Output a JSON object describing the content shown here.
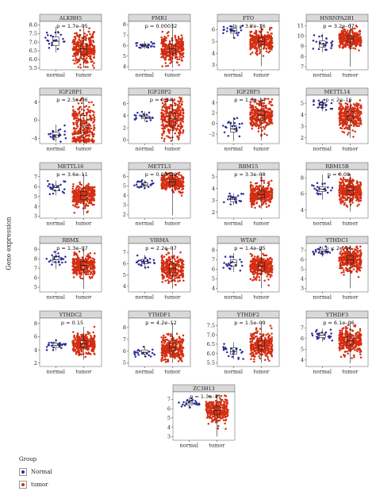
{
  "figure": {
    "ylabel": "Gene expression",
    "legend": {
      "title": "Group",
      "items": [
        {
          "label": "Normal",
          "color": "#2b2b9e"
        },
        {
          "label": "tumor",
          "color": "#d42e12"
        }
      ]
    }
  },
  "chart_data": [
    {
      "type": "scatter",
      "title": "ALKBH5",
      "p_label": "p = 1.7e–05",
      "categories": [
        "normal",
        "tumor"
      ],
      "yticks": [
        "8.0",
        "7.5",
        "7.0",
        "6.5",
        "6.0",
        "5.5"
      ],
      "ylim": [
        5.4,
        8.2
      ],
      "normal": {
        "median": 7.05,
        "q1": 6.8,
        "q3": 7.3,
        "min": 6.4,
        "max": 7.9,
        "n": 22
      },
      "tumor": {
        "median": 6.6,
        "q1": 6.3,
        "q3": 6.9,
        "min": 5.5,
        "max": 8.0,
        "n": 300
      }
    },
    {
      "type": "scatter",
      "title": "FMR1",
      "p_label": "p = 0.00032",
      "categories": [
        "normal",
        "tumor"
      ],
      "yticks": [
        "8",
        "7",
        "6",
        "5",
        "4"
      ],
      "ylim": [
        3.7,
        8.3
      ],
      "normal": {
        "median": 6.0,
        "q1": 5.9,
        "q3": 6.15,
        "min": 5.7,
        "max": 6.4,
        "n": 22
      },
      "tumor": {
        "median": 5.7,
        "q1": 5.3,
        "q3": 6.1,
        "min": 3.9,
        "max": 8.1,
        "n": 300
      }
    },
    {
      "type": "scatter",
      "title": "FTO",
      "p_label": "p = 3.2e–16",
      "categories": [
        "normal",
        "tumor"
      ],
      "yticks": [
        "6",
        "5",
        "4",
        "3"
      ],
      "ylim": [
        2.6,
        6.7
      ],
      "normal": {
        "median": 5.9,
        "q1": 5.7,
        "q3": 6.1,
        "min": 5.3,
        "max": 6.5,
        "n": 22
      },
      "tumor": {
        "median": 5.0,
        "q1": 4.7,
        "q3": 5.3,
        "min": 2.9,
        "max": 6.5,
        "n": 300
      }
    },
    {
      "type": "scatter",
      "title": "HNRNPA2B1",
      "p_label": "p = 3.2e–07",
      "categories": [
        "normal",
        "tumor"
      ],
      "yticks": [
        "11",
        "10",
        "9",
        "8",
        "7"
      ],
      "ylim": [
        6.7,
        11.4
      ],
      "normal": {
        "median": 9.2,
        "q1": 8.9,
        "q3": 9.5,
        "min": 8.4,
        "max": 10.2,
        "n": 22
      },
      "tumor": {
        "median": 9.7,
        "q1": 9.4,
        "q3": 10.0,
        "min": 7.0,
        "max": 11.2,
        "n": 300
      }
    },
    {
      "type": "scatter",
      "title": "IGF2BP1",
      "p_label": "p = 2.5e–06",
      "categories": [
        "normal",
        "tumor"
      ],
      "yticks": [
        "4",
        "0",
        "–4"
      ],
      "ylim": [
        -5.2,
        5.5
      ],
      "normal": {
        "median": -3.3,
        "q1": -3.8,
        "q3": -2.7,
        "min": -4.8,
        "max": -1.0,
        "n": 22
      },
      "tumor": {
        "median": -1.3,
        "q1": -2.8,
        "q3": 1.0,
        "min": -4.9,
        "max": 5.0,
        "n": 300
      }
    },
    {
      "type": "scatter",
      "title": "IGF2BP2",
      "p_label": "p = 0.34",
      "categories": [
        "normal",
        "tumor"
      ],
      "yticks": [
        "6",
        "4",
        "2",
        "0"
      ],
      "ylim": [
        -0.6,
        7.4
      ],
      "normal": {
        "median": 3.8,
        "q1": 3.5,
        "q3": 4.1,
        "min": 3.0,
        "max": 4.7,
        "n": 22
      },
      "tumor": {
        "median": 3.5,
        "q1": 2.3,
        "q3": 4.5,
        "min": -0.2,
        "max": 7.0,
        "n": 300
      }
    },
    {
      "type": "scatter",
      "title": "IGF2BP3",
      "p_label": "p = 1.6e–14",
      "categories": [
        "normal",
        "tumor"
      ],
      "yticks": [
        "4",
        "2",
        "0",
        "–2"
      ],
      "ylim": [
        -3.8,
        5.4
      ],
      "normal": {
        "median": -1.0,
        "q1": -1.6,
        "q3": -0.4,
        "min": -3.3,
        "max": 1.2,
        "n": 22
      },
      "tumor": {
        "median": 1.6,
        "q1": 0.6,
        "q3": 2.5,
        "min": -3.2,
        "max": 4.8,
        "n": 300
      }
    },
    {
      "type": "scatter",
      "title": "METTL14",
      "p_label": "p < 2e–16",
      "categories": [
        "normal",
        "tumor"
      ],
      "yticks": [
        "5",
        "4",
        "3",
        "2"
      ],
      "ylim": [
        1.5,
        5.7
      ],
      "normal": {
        "median": 4.85,
        "q1": 4.65,
        "q3": 5.05,
        "min": 4.3,
        "max": 5.3,
        "n": 22
      },
      "tumor": {
        "median": 3.9,
        "q1": 3.5,
        "q3": 4.3,
        "min": 2.0,
        "max": 5.3,
        "n": 300
      }
    },
    {
      "type": "scatter",
      "title": "METTL16",
      "p_label": "p = 3.6e–11",
      "categories": [
        "normal",
        "tumor"
      ],
      "yticks": [
        "7",
        "6",
        "5",
        "4",
        "3"
      ],
      "ylim": [
        2.8,
        7.7
      ],
      "normal": {
        "median": 5.9,
        "q1": 5.6,
        "q3": 6.1,
        "min": 5.1,
        "max": 6.6,
        "n": 22
      },
      "tumor": {
        "median": 5.1,
        "q1": 4.7,
        "q3": 5.5,
        "min": 3.1,
        "max": 7.3,
        "n": 300
      }
    },
    {
      "type": "scatter",
      "title": "METTL3",
      "p_label": "p = 0.00039",
      "categories": [
        "normal",
        "tumor"
      ],
      "yticks": [
        "6",
        "5",
        "4",
        "3",
        "2"
      ],
      "ylim": [
        1.6,
        6.7
      ],
      "normal": {
        "median": 5.1,
        "q1": 4.95,
        "q3": 5.3,
        "min": 4.7,
        "max": 5.6,
        "n": 22
      },
      "tumor": {
        "median": 5.4,
        "q1": 5.1,
        "q3": 5.7,
        "min": 1.9,
        "max": 6.4,
        "n": 300
      }
    },
    {
      "type": "scatter",
      "title": "RBM15",
      "p_label": "p = 3.3e–08",
      "categories": [
        "normal",
        "tumor"
      ],
      "yticks": [
        "5",
        "4",
        "3",
        "2"
      ],
      "ylim": [
        1.5,
        5.6
      ],
      "normal": {
        "median": 3.1,
        "q1": 2.9,
        "q3": 3.3,
        "min": 2.6,
        "max": 3.6,
        "n": 22
      },
      "tumor": {
        "median": 3.5,
        "q1": 3.2,
        "q3": 3.8,
        "min": 2.3,
        "max": 5.3,
        "n": 300
      }
    },
    {
      "type": "scatter",
      "title": "RBM15B",
      "p_label": "p = 0.08",
      "categories": [
        "normal",
        "tumor"
      ],
      "yticks": [
        "8",
        "6",
        "4"
      ],
      "ylim": [
        3.0,
        9.0
      ],
      "normal": {
        "median": 6.6,
        "q1": 6.3,
        "q3": 6.9,
        "min": 5.3,
        "max": 8.4,
        "n": 22
      },
      "tumor": {
        "median": 6.4,
        "q1": 5.9,
        "q3": 6.9,
        "min": 3.8,
        "max": 8.5,
        "n": 300
      }
    },
    {
      "type": "scatter",
      "title": "RBMX",
      "p_label": "p = 1.3e–07",
      "categories": [
        "normal",
        "tumor"
      ],
      "yticks": [
        "9",
        "8",
        "7",
        "6",
        "5"
      ],
      "ylim": [
        4.5,
        9.6
      ],
      "normal": {
        "median": 7.9,
        "q1": 7.6,
        "q3": 8.2,
        "min": 6.9,
        "max": 8.9,
        "n": 22
      },
      "tumor": {
        "median": 7.3,
        "q1": 6.9,
        "q3": 7.7,
        "min": 4.8,
        "max": 9.2,
        "n": 300
      }
    },
    {
      "type": "scatter",
      "title": "VIRMA",
      "p_label": "p = 2.2e–07",
      "categories": [
        "normal",
        "tumor"
      ],
      "yticks": [
        "7",
        "6",
        "5",
        "4"
      ],
      "ylim": [
        3.5,
        7.8
      ],
      "normal": {
        "median": 6.2,
        "q1": 6.0,
        "q3": 6.4,
        "min": 5.6,
        "max": 6.8,
        "n": 22
      },
      "tumor": {
        "median": 5.6,
        "q1": 5.2,
        "q3": 6.0,
        "min": 3.8,
        "max": 7.5,
        "n": 300
      }
    },
    {
      "type": "scatter",
      "title": "WTAP",
      "p_label": "p = 1.4e–05",
      "categories": [
        "normal",
        "tumor"
      ],
      "yticks": [
        "8",
        "7",
        "6",
        "5",
        "4"
      ],
      "ylim": [
        3.6,
        8.7
      ],
      "normal": {
        "median": 6.7,
        "q1": 6.3,
        "q3": 7.0,
        "min": 5.7,
        "max": 7.7,
        "n": 22
      },
      "tumor": {
        "median": 6.3,
        "q1": 5.9,
        "q3": 6.7,
        "min": 4.0,
        "max": 8.4,
        "n": 300
      }
    },
    {
      "type": "scatter",
      "title": "YTHDC1",
      "p_label": "p < 2e–16",
      "categories": [
        "normal",
        "tumor"
      ],
      "yticks": [
        "7",
        "6",
        "5",
        "4",
        "3"
      ],
      "ylim": [
        2.6,
        7.7
      ],
      "normal": {
        "median": 6.9,
        "q1": 6.7,
        "q3": 7.1,
        "min": 6.3,
        "max": 7.4,
        "n": 22
      },
      "tumor": {
        "median": 6.0,
        "q1": 5.6,
        "q3": 6.4,
        "min": 3.0,
        "max": 7.5,
        "n": 300
      }
    },
    {
      "type": "scatter",
      "title": "YTHDC2",
      "p_label": "p = 0.15",
      "categories": [
        "normal",
        "tumor"
      ],
      "yticks": [
        "8",
        "6",
        "4",
        "2"
      ],
      "ylim": [
        1.5,
        8.8
      ],
      "normal": {
        "median": 4.7,
        "q1": 4.4,
        "q3": 5.0,
        "min": 3.9,
        "max": 5.6,
        "n": 22
      },
      "tumor": {
        "median": 4.9,
        "q1": 4.4,
        "q3": 5.4,
        "min": 2.5,
        "max": 7.5,
        "n": 300
      }
    },
    {
      "type": "scatter",
      "title": "YTHDF1",
      "p_label": "p = 4.2e–12",
      "categories": [
        "normal",
        "tumor"
      ],
      "yticks": [
        "8",
        "7",
        "6",
        "5"
      ],
      "ylim": [
        4.7,
        8.8
      ],
      "normal": {
        "median": 5.9,
        "q1": 5.75,
        "q3": 6.1,
        "min": 5.5,
        "max": 6.4,
        "n": 22
      },
      "tumor": {
        "median": 6.3,
        "q1": 6.0,
        "q3": 6.7,
        "min": 5.0,
        "max": 8.4,
        "n": 300
      }
    },
    {
      "type": "scatter",
      "title": "YTHDF2",
      "p_label": "p = 1.5e–09",
      "categories": [
        "normal",
        "tumor"
      ],
      "yticks": [
        "7.5",
        "7.0",
        "6.5",
        "6.0",
        "5.5"
      ],
      "ylim": [
        5.3,
        7.9
      ],
      "normal": {
        "median": 6.1,
        "q1": 5.95,
        "q3": 6.3,
        "min": 5.7,
        "max": 6.6,
        "n": 22
      },
      "tumor": {
        "median": 6.4,
        "q1": 6.2,
        "q3": 6.7,
        "min": 5.5,
        "max": 7.7,
        "n": 300
      }
    },
    {
      "type": "scatter",
      "title": "YTHDF3",
      "p_label": "p = 6.1e–06",
      "categories": [
        "normal",
        "tumor"
      ],
      "yticks": [
        "7",
        "6",
        "5",
        "4"
      ],
      "ylim": [
        3.4,
        7.9
      ],
      "normal": {
        "median": 6.3,
        "q1": 6.1,
        "q3": 6.5,
        "min": 5.7,
        "max": 6.9,
        "n": 22
      },
      "tumor": {
        "median": 5.8,
        "q1": 5.4,
        "q3": 6.2,
        "min": 3.7,
        "max": 7.5,
        "n": 300
      }
    },
    {
      "type": "scatter",
      "title": "ZC3H13",
      "p_label": "p = 1.3e–11",
      "categories": [
        "normal",
        "tumor"
      ],
      "yticks": [
        "7",
        "6",
        "5",
        "4",
        "3"
      ],
      "ylim": [
        2.6,
        7.8
      ],
      "normal": {
        "median": 6.6,
        "q1": 6.4,
        "q3": 6.8,
        "min": 6.0,
        "max": 7.2,
        "n": 22
      },
      "tumor": {
        "median": 5.8,
        "q1": 5.4,
        "q3": 6.2,
        "min": 3.0,
        "max": 7.5,
        "n": 300
      }
    }
  ]
}
